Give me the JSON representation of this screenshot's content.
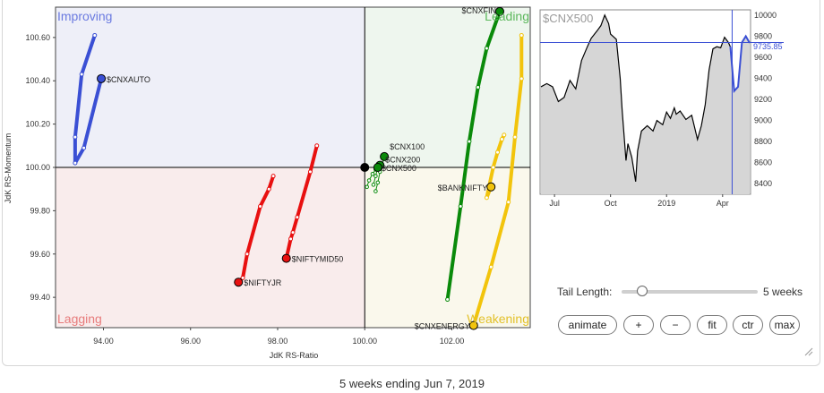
{
  "rrg": {
    "xlabel": "JdK RS-Ratio",
    "ylabel": "JdK RS-Momentum",
    "quadrants": {
      "improving": "Improving",
      "leading": "Leading",
      "weakening": "Weakening",
      "lagging": "Lagging"
    },
    "colors": {
      "improving": "#6a7ae0",
      "leading": "#5cb85c",
      "weakening": "#e2c12a",
      "lagging": "#e77b7b"
    }
  },
  "mini": {
    "title": "$CNX500",
    "current_label": "9735.85"
  },
  "controls": {
    "tail_label": "Tail Length:",
    "tail_value": "5 weeks",
    "tail_fraction": 0.12,
    "buttons": [
      "animate",
      "+",
      "−",
      "fit",
      "ctr",
      "max"
    ]
  },
  "footer": "5 weeks ending Jun 7, 2019",
  "chart_data": [
    {
      "type": "scatter",
      "subtype": "relative-rotation-graph",
      "xlabel": "JdK RS-Ratio",
      "ylabel": "JdK RS-Momentum",
      "xlim": [
        92.9,
        103.8
      ],
      "ylim": [
        99.26,
        100.74
      ],
      "xticks": [
        "94.00",
        "96.00",
        "98.00",
        "100.00",
        "102.00"
      ],
      "yticks": [
        "99.40",
        "99.60",
        "99.80",
        "100.00",
        "100.20",
        "100.40",
        "100.60"
      ],
      "center": [
        100,
        100
      ],
      "series": [
        {
          "name": "$CNXAUTO",
          "color": "#3a4fd4",
          "x": [
            93.8,
            93.5,
            93.35,
            93.35,
            93.55,
            93.95
          ],
          "y": [
            100.61,
            100.43,
            100.14,
            100.02,
            100.09,
            100.41
          ]
        },
        {
          "name": "$CNXFIN",
          "color": "#0a8a0a",
          "x": [
            101.9,
            102.2,
            102.4,
            102.6,
            102.8,
            103.1
          ],
          "y": [
            99.39,
            99.82,
            100.12,
            100.37,
            100.55,
            100.72
          ]
        },
        {
          "name": "$CNXENERGY",
          "color": "#f2c40c",
          "x": [
            103.6,
            103.6,
            103.45,
            103.3,
            102.9,
            102.5
          ],
          "y": [
            100.61,
            100.41,
            100.14,
            99.84,
            99.54,
            99.27
          ]
        },
        {
          "name": "$BANKNIFTY",
          "color": "#f2c40c",
          "x": [
            103.2,
            103.15,
            103.05,
            102.95,
            102.8,
            102.9
          ],
          "y": [
            100.15,
            100.13,
            100.07,
            100.0,
            99.86,
            99.91
          ]
        },
        {
          "name": "$CNX100",
          "color": "#0a8a0a",
          "x": [
            100.25,
            100.3,
            100.35,
            100.4,
            100.45
          ],
          "y": [
            99.89,
            99.93,
            99.98,
            100.01,
            100.05
          ]
        },
        {
          "name": "$CNX200",
          "color": "#0a8a0a",
          "x": [
            100.2,
            100.25,
            100.3,
            100.33,
            100.35
          ],
          "y": [
            99.92,
            99.96,
            100.0,
            100.01,
            100.01
          ]
        },
        {
          "name": "$CNX500",
          "color": "#0a8a0a",
          "x": [
            100.05,
            100.1,
            100.18,
            100.25,
            100.3
          ],
          "y": [
            99.91,
            99.94,
            99.97,
            99.99,
            100.0
          ]
        },
        {
          "name": "$NIFTYJR",
          "color": "#e81010",
          "x": [
            97.9,
            97.8,
            97.6,
            97.3,
            97.2,
            97.1
          ],
          "y": [
            99.96,
            99.9,
            99.82,
            99.6,
            99.49,
            99.47
          ]
        },
        {
          "name": "$NIFTYMID50",
          "color": "#e81010",
          "x": [
            98.9,
            98.75,
            98.45,
            98.35,
            98.3,
            98.2
          ],
          "y": [
            100.1,
            99.98,
            99.77,
            99.7,
            99.67,
            99.58
          ]
        },
        {
          "name": "$CNX",
          "color": "#000000",
          "x": [
            100.0
          ],
          "y": [
            100.0
          ]
        }
      ],
      "labels": [
        "$CNXAUTO",
        "$CNXFIN",
        "$CNXENERGY",
        "$BANKNIFTY",
        "$CNX100",
        "$CNX200",
        "$CNX500",
        "$NIFTYJR",
        "$NIFTYMID50"
      ]
    },
    {
      "type": "area",
      "title": "$CNX500",
      "categories": [
        "Jul",
        "Oct",
        "2019",
        "Apr"
      ],
      "ylim": [
        8300,
        10050
      ],
      "yticks": [
        "10000",
        "9800",
        "9600",
        "9400",
        "9200",
        "9000",
        "8800",
        "8600",
        "8400"
      ],
      "series": [
        {
          "name": "$CNX500",
          "color": "#000000",
          "x": [
            0,
            0.03,
            0.06,
            0.09,
            0.12,
            0.15,
            0.18,
            0.21,
            0.24,
            0.26,
            0.29,
            0.31,
            0.33,
            0.35,
            0.36,
            0.39,
            0.41,
            0.42,
            0.44,
            0.45,
            0.47,
            0.49,
            0.5,
            0.52,
            0.55,
            0.58,
            0.6,
            0.63,
            0.65,
            0.67,
            0.69,
            0.7,
            0.72,
            0.75,
            0.78,
            0.81,
            0.83,
            0.85,
            0.87,
            0.89,
            0.91,
            0.93,
            0.95,
            0.97,
            0.98
          ],
          "y": [
            9320,
            9350,
            9320,
            9180,
            9220,
            9380,
            9300,
            9570,
            9700,
            9780,
            9850,
            9900,
            10000,
            9920,
            9820,
            9770,
            9400,
            9100,
            8620,
            8780,
            8650,
            8420,
            8710,
            8900,
            8950,
            8900,
            9000,
            8960,
            9080,
            9020,
            9120,
            9060,
            9090,
            9010,
            9050,
            8820,
            8950,
            9150,
            9480,
            9680,
            9700,
            9690,
            9790,
            9740,
            9700
          ]
        },
        {
          "name": "$CNX500",
          "color": "#3a4fd4",
          "x": [
            0.98,
            1.0,
            1.02,
            1.04,
            1.06,
            1.08
          ],
          "y": [
            9700,
            9280,
            9320,
            9740,
            9800,
            9736
          ]
        }
      ]
    }
  ]
}
